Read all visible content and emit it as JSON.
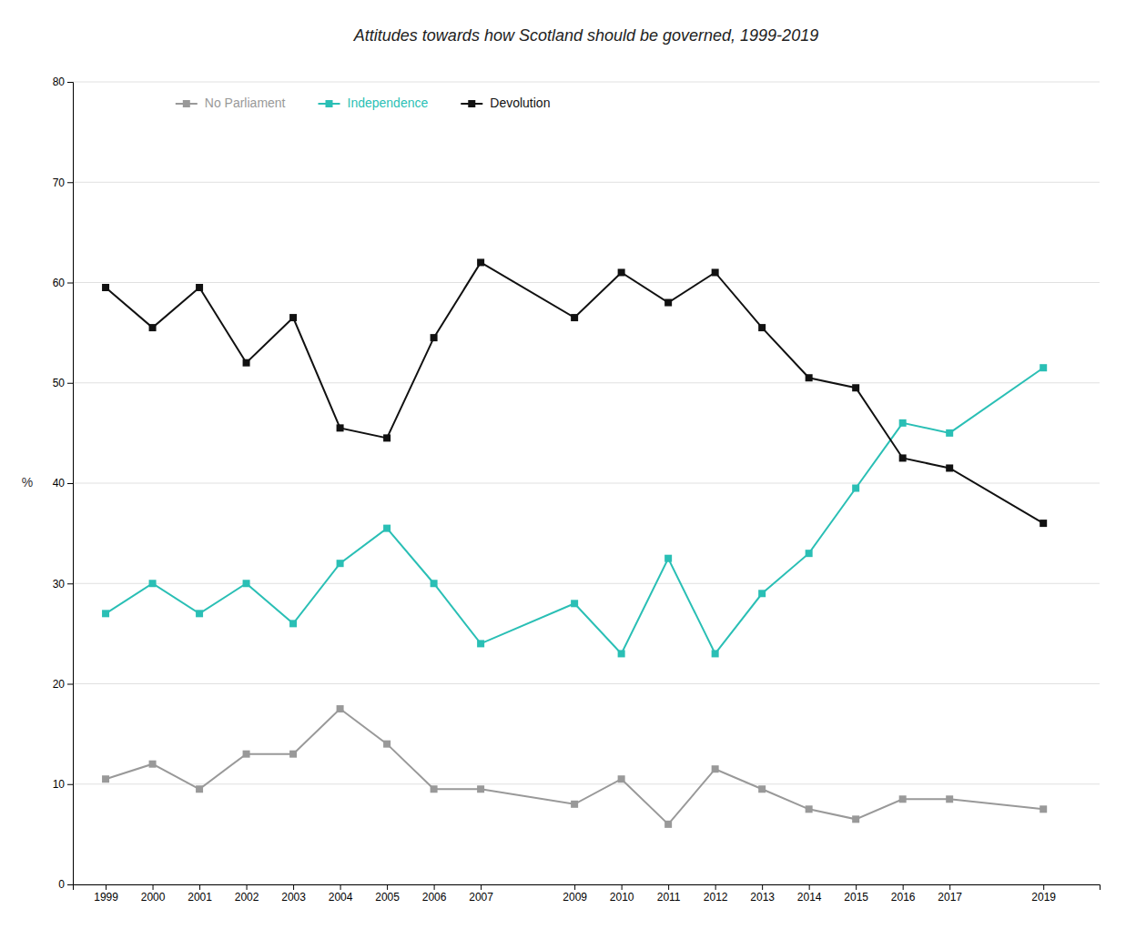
{
  "chart_data": {
    "type": "line",
    "title": "Attitudes towards how Scotland should be governed, 1999-2019",
    "ylabel": "%",
    "x": [
      1999,
      2000,
      2001,
      2002,
      2003,
      2004,
      2005,
      2006,
      2007,
      2009,
      2010,
      2011,
      2012,
      2013,
      2014,
      2015,
      2016,
      2017,
      2019
    ],
    "xlim": [
      1998.3,
      2020.2
    ],
    "xticks": [
      1999,
      2000,
      2001,
      2002,
      2003,
      2004,
      2005,
      2006,
      2007,
      2009,
      2010,
      2011,
      2012,
      2013,
      2014,
      2015,
      2016,
      2017,
      2019
    ],
    "ylim": [
      0,
      80
    ],
    "yticks": [
      0,
      10,
      20,
      30,
      40,
      50,
      60,
      70,
      80
    ],
    "grid": true,
    "legend": "upper left",
    "series": [
      {
        "name": "No Parliament",
        "color": "#999999",
        "marker": "square",
        "values": [
          10.5,
          12,
          9.5,
          13,
          13,
          17.5,
          14,
          9.5,
          9.5,
          8,
          10.5,
          6,
          11.5,
          9.5,
          7.5,
          6.5,
          8.5,
          8.5,
          7.5
        ]
      },
      {
        "name": "Independence",
        "color": "#2abfb5",
        "marker": "square",
        "values": [
          27,
          30,
          27,
          30,
          26,
          32,
          35.5,
          30,
          24,
          28,
          23,
          32.5,
          23,
          29,
          33,
          39.5,
          46,
          45,
          51.5
        ]
      },
      {
        "name": "Devolution",
        "color": "#111111",
        "marker": "square",
        "values": [
          59.5,
          55.5,
          59.5,
          52,
          56.5,
          45.5,
          44.5,
          54.5,
          62,
          56.5,
          61,
          58,
          61,
          55.5,
          50.5,
          49.5,
          42.5,
          41.5,
          36
        ]
      }
    ]
  }
}
